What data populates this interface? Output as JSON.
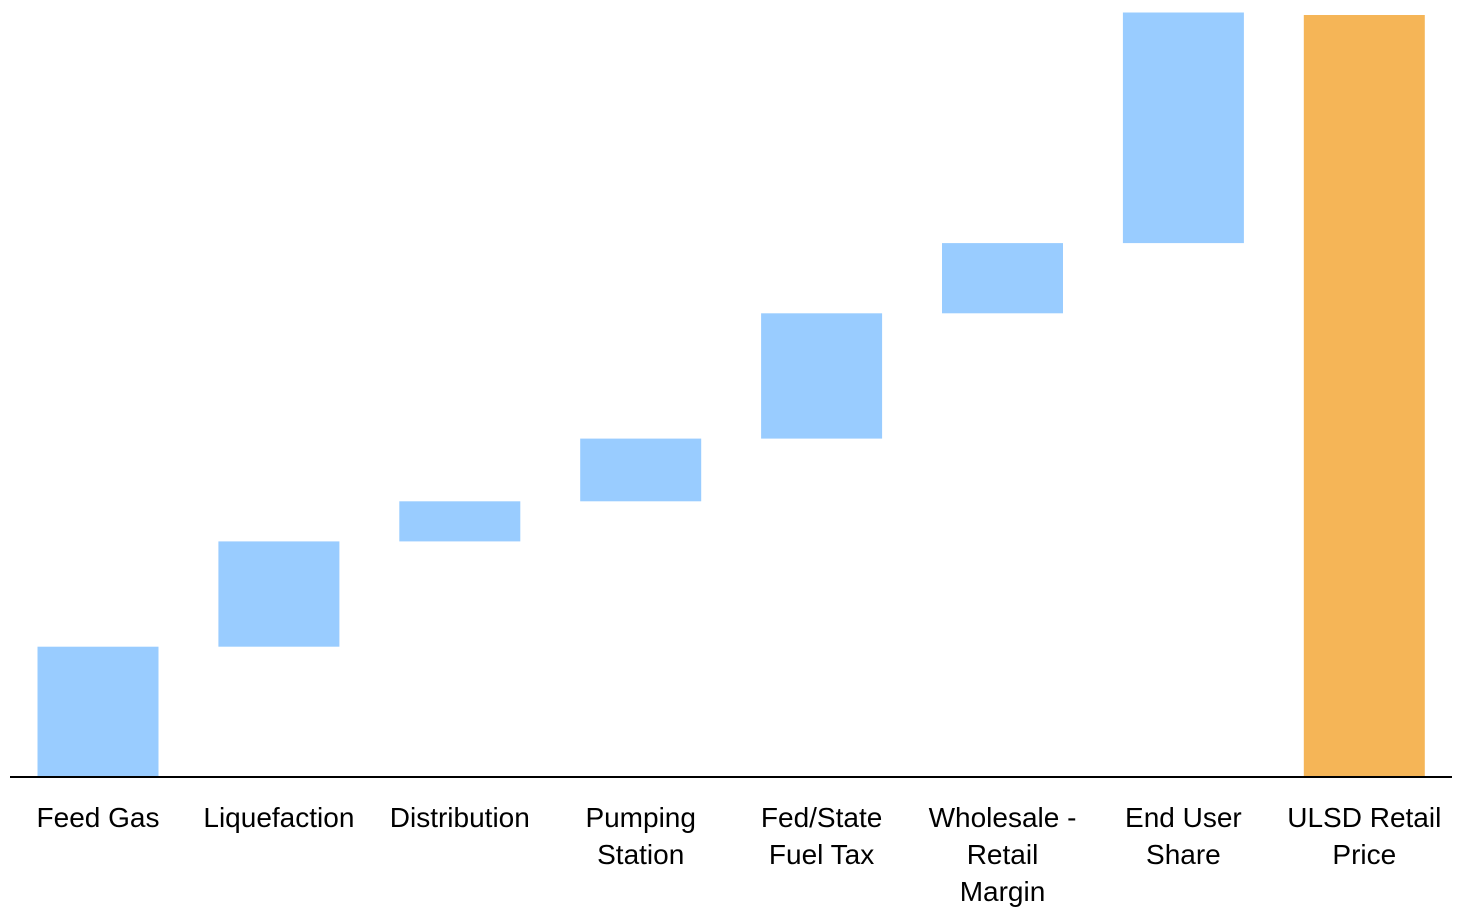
{
  "chart_data": {
    "type": "bar",
    "subtype": "waterfall",
    "title": "",
    "xlabel": "",
    "ylabel": "",
    "categories": [
      "Feed Gas",
      "Liquefaction",
      "Distribution",
      "Pumping Station",
      "Fed/State Fuel Tax",
      "Wholesale - Retail Margin",
      "End User Share",
      "ULSD Retail Price"
    ],
    "category_label_lines": [
      [
        "Feed Gas"
      ],
      [
        "Liquefaction"
      ],
      [
        "Distribution"
      ],
      [
        "Pumping",
        "Station"
      ],
      [
        "Fed/State",
        "Fuel Tax"
      ],
      [
        "Wholesale -",
        "Retail",
        "Margin"
      ],
      [
        "End User",
        "Share"
      ],
      [
        "ULSD Retail",
        "Price"
      ]
    ],
    "values": [
      0.52,
      0.42,
      0.16,
      0.25,
      0.5,
      0.28,
      0.92,
      3.04
    ],
    "bar_kinds": [
      "step",
      "step",
      "step",
      "step",
      "step",
      "step",
      "step",
      "total"
    ],
    "ylim": [
      0,
      3.06
    ],
    "grid": false,
    "legend": "none",
    "colors": {
      "step": "#99ccff",
      "total": "#f5b557",
      "axis": "#000000"
    }
  }
}
